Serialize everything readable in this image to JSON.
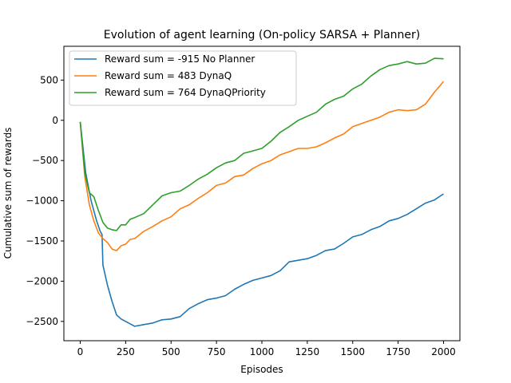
{
  "chart_data": {
    "type": "line",
    "title": "Evolution of agent learning (On-policy SARSA + Planner)",
    "xlabel": "Episodes",
    "ylabel": "Cumulative sum of rewards",
    "xlim": [
      -90,
      2090
    ],
    "ylim": [
      -2740,
      920
    ],
    "xticks": [
      0,
      250,
      500,
      750,
      1000,
      1250,
      1500,
      1750,
      2000
    ],
    "yticks": [
      -2500,
      -2000,
      -1500,
      -1000,
      -500,
      0,
      500
    ],
    "grid": false,
    "legend_position": "top-left",
    "series": [
      {
        "name": "Reward sum = -915 No Planner",
        "color": "#1f77b4",
        "x": [
          0,
          30,
          60,
          90,
          110,
          120,
          125,
          135,
          150,
          175,
          200,
          225,
          250,
          300,
          350,
          400,
          450,
          500,
          550,
          600,
          650,
          700,
          750,
          800,
          850,
          900,
          950,
          1000,
          1050,
          1100,
          1150,
          1200,
          1250,
          1300,
          1350,
          1400,
          1450,
          1500,
          1550,
          1600,
          1650,
          1700,
          1750,
          1800,
          1850,
          1900,
          1950,
          2000
        ],
        "y": [
          -20,
          -650,
          -1000,
          -1250,
          -1380,
          -1420,
          -1800,
          -1900,
          -2050,
          -2250,
          -2420,
          -2470,
          -2500,
          -2560,
          -2540,
          -2520,
          -2480,
          -2470,
          -2440,
          -2340,
          -2280,
          -2230,
          -2210,
          -2180,
          -2100,
          -2040,
          -1990,
          -1960,
          -1930,
          -1870,
          -1760,
          -1740,
          -1720,
          -1680,
          -1620,
          -1600,
          -1530,
          -1450,
          -1420,
          -1360,
          -1320,
          -1250,
          -1220,
          -1170,
          -1100,
          -1030,
          -990,
          -915
        ]
      },
      {
        "name": "Reward sum = 483 DynaQ",
        "color": "#ff7f0e",
        "x": [
          0,
          25,
          50,
          75,
          100,
          125,
          150,
          175,
          200,
          225,
          250,
          275,
          300,
          350,
          400,
          450,
          500,
          550,
          600,
          650,
          700,
          750,
          800,
          850,
          900,
          950,
          1000,
          1050,
          1100,
          1150,
          1200,
          1250,
          1300,
          1350,
          1400,
          1450,
          1500,
          1550,
          1600,
          1650,
          1700,
          1750,
          1800,
          1850,
          1900,
          1950,
          2000
        ],
        "y": [
          -20,
          -700,
          -1050,
          -1250,
          -1400,
          -1470,
          -1520,
          -1600,
          -1620,
          -1560,
          -1540,
          -1480,
          -1470,
          -1380,
          -1320,
          -1250,
          -1200,
          -1100,
          -1050,
          -970,
          -900,
          -810,
          -780,
          -700,
          -680,
          -600,
          -540,
          -500,
          -430,
          -390,
          -350,
          -350,
          -330,
          -280,
          -220,
          -170,
          -80,
          -40,
          0,
          40,
          100,
          130,
          120,
          130,
          200,
          350,
          483
        ]
      },
      {
        "name": "Reward sum = 764 DynaQPriority",
        "color": "#2ca02c",
        "x": [
          0,
          25,
          50,
          75,
          100,
          125,
          150,
          175,
          200,
          225,
          250,
          275,
          300,
          350,
          400,
          450,
          500,
          550,
          600,
          650,
          700,
          750,
          800,
          850,
          900,
          950,
          1000,
          1050,
          1100,
          1150,
          1200,
          1250,
          1300,
          1350,
          1400,
          1450,
          1500,
          1550,
          1600,
          1650,
          1700,
          1750,
          1800,
          1850,
          1900,
          1950,
          2000
        ],
        "y": [
          -20,
          -650,
          -900,
          -950,
          -1120,
          -1270,
          -1340,
          -1360,
          -1370,
          -1300,
          -1300,
          -1230,
          -1210,
          -1160,
          -1050,
          -940,
          -900,
          -880,
          -810,
          -730,
          -670,
          -590,
          -530,
          -500,
          -410,
          -380,
          -350,
          -260,
          -150,
          -80,
          0,
          50,
          100,
          200,
          260,
          300,
          390,
          450,
          550,
          630,
          680,
          700,
          730,
          700,
          710,
          770,
          764
        ]
      }
    ]
  }
}
